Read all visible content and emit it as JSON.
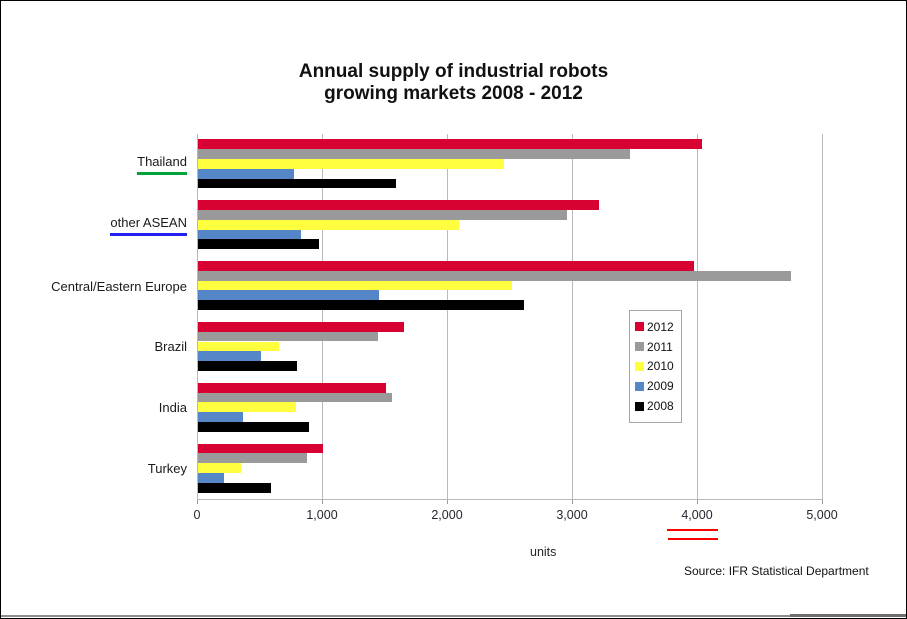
{
  "title": {
    "line1": "Annual supply of industrial robots",
    "line2": "growing markets 2008 - 2012"
  },
  "chart_data": {
    "type": "bar",
    "orientation": "horizontal",
    "title": "Annual supply of industrial robots growing markets 2008 - 2012",
    "xlabel": "units",
    "xlim": [
      0,
      5000
    ],
    "x_ticks": [
      "0",
      "1,000",
      "2,000",
      "3,000",
      "4,000",
      "5,000"
    ],
    "grid": "vertical",
    "legend_position": "middle-right",
    "categories": [
      "Thailand",
      "other ASEAN",
      "Central/Eastern Europe",
      "Brazil",
      "India",
      "Turkey"
    ],
    "series": [
      {
        "name": "2012",
        "color": "#d80232",
        "values": [
          4030,
          3210,
          3970,
          1650,
          1500,
          1000
        ]
      },
      {
        "name": "2011",
        "color": "#9a9a9a",
        "values": [
          3455,
          2950,
          4740,
          1440,
          1550,
          870
        ]
      },
      {
        "name": "2010",
        "color": "#ffff40",
        "values": [
          2450,
          2090,
          2510,
          650,
          780,
          340
        ]
      },
      {
        "name": "2009",
        "color": "#5587c8",
        "values": [
          770,
          820,
          1450,
          500,
          360,
          210
        ]
      },
      {
        "name": "2008",
        "color": "#000000",
        "values": [
          1580,
          970,
          2610,
          790,
          890,
          580
        ]
      }
    ]
  },
  "annotations": {
    "thailand_underline_color": "#00a23c",
    "asean_underline_color": "#2222ee",
    "xtick_4000_underline_color": "#ff0000"
  },
  "source": "Source: IFR Statistical Department"
}
